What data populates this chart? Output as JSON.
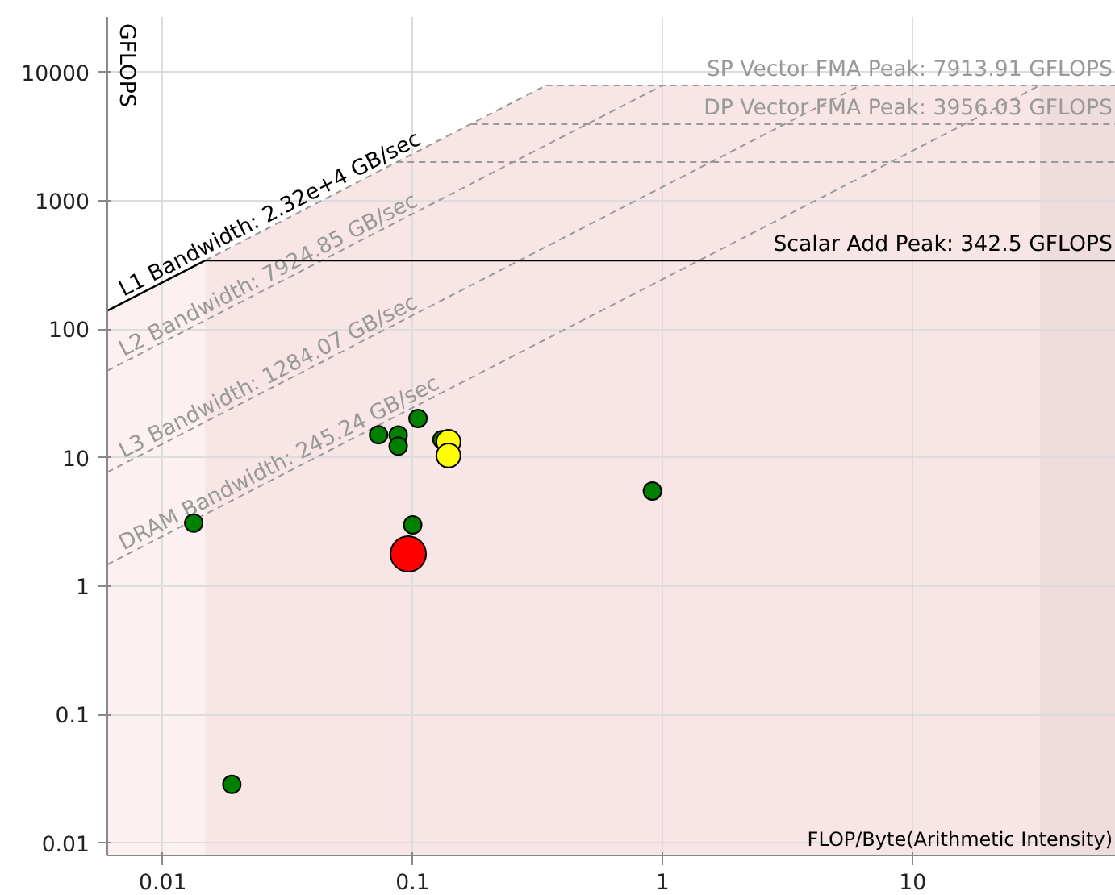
{
  "chart_data": {
    "type": "bubble",
    "xlabel": "FLOP/Byte(Arithmetic Intensity)",
    "ylabel": "GFLOPS",
    "log": "xy",
    "grid": true,
    "xlim": [
      0.006,
      65
    ],
    "ylim": [
      0.008,
      27000
    ],
    "xticks": [
      0.01,
      0.1,
      1,
      10
    ],
    "yticks": [
      0.01,
      0.1,
      1,
      10,
      100,
      1000,
      10000
    ],
    "bands": [
      {
        "axis": "x",
        "from": 0.006,
        "to": 0.01476,
        "color": "#fdf0f0"
      },
      {
        "axis": "x",
        "from": 0.01476,
        "to": 32.27,
        "color": "#f8e6e6"
      },
      {
        "axis": "x",
        "from": 32.27,
        "to": 65,
        "color": "#efdddd"
      }
    ],
    "series": [
      {
        "type": "line",
        "name": "L1 Bandwidth: 2.32e+4 GB/sec",
        "color": "#000000",
        "line_style": "solid",
        "x": [
          0.006,
          0.01476
        ],
        "values": [
          139.2,
          342.5
        ]
      },
      {
        "type": "line",
        "color": "#999999",
        "line_style": "dashed",
        "x": [
          0.01476,
          0.3411
        ],
        "values": [
          342.5,
          7913.91
        ]
      },
      {
        "type": "line",
        "name": "L2 Bandwidth: 7924.85 GB/sec",
        "color": "#999999",
        "line_style": "dashed",
        "x": [
          0.006,
          0.9986
        ],
        "values": [
          47.55,
          7913.91
        ]
      },
      {
        "type": "line",
        "name": "L3 Bandwidth: 1284.07 GB/sec",
        "color": "#999999",
        "line_style": "dashed",
        "x": [
          0.006,
          6.163
        ],
        "values": [
          7.704,
          7913.91
        ]
      },
      {
        "type": "line",
        "name": "DRAM Bandwidth: 245.24 GB/sec",
        "color": "#999999",
        "line_style": "dashed",
        "x": [
          0.006,
          32.27
        ],
        "values": [
          1.471,
          7913.91
        ]
      },
      {
        "type": "line",
        "name": "SP Vector FMA Peak: 7913.91 GFLOPS",
        "color": "#999999",
        "line_style": "dashed",
        "x": [
          0.3411,
          65
        ],
        "values": [
          7913.91,
          7913.91
        ]
      },
      {
        "type": "line",
        "name": "DP Vector FMA Peak: 3956.03 GFLOPS",
        "color": "#999999",
        "line_style": "dashed",
        "x": [
          0.1705,
          65
        ],
        "values": [
          3956.03,
          3956.03
        ]
      },
      {
        "type": "line",
        "color": "#999999",
        "line_style": "dashed",
        "x": [
          0.086,
          65
        ],
        "values": [
          2000,
          2000
        ]
      },
      {
        "type": "line",
        "name": "Scalar Add Peak: 342.5 GFLOPS",
        "color": "#000000",
        "line_style": "solid",
        "x": [
          0.01476,
          65
        ],
        "values": [
          342.5,
          342.5
        ]
      },
      {
        "type": "bubble",
        "color": "#008000",
        "x": [
          0.0133,
          0.073,
          0.0875,
          0.0875,
          0.105,
          0.131,
          0.91,
          0.1,
          0.0189
        ],
        "values": [
          3.1,
          15.1,
          15,
          12.3,
          20.2,
          13.8,
          5.5,
          3.0,
          0.0286
        ],
        "sizes": [
          0.25,
          0.25,
          0.25,
          0.25,
          0.25,
          0.25,
          0.25,
          0.25,
          0.25
        ]
      },
      {
        "type": "bubble",
        "color": "#ffff00",
        "x": [
          0.139,
          0.139
        ],
        "values": [
          13.3,
          10.4
        ],
        "sizes": [
          0.46,
          0.46
        ]
      },
      {
        "type": "bubble",
        "color": "#ff0000",
        "x": [
          0.096
        ],
        "values": [
          1.78
        ],
        "sizes": [
          1
        ]
      }
    ]
  }
}
